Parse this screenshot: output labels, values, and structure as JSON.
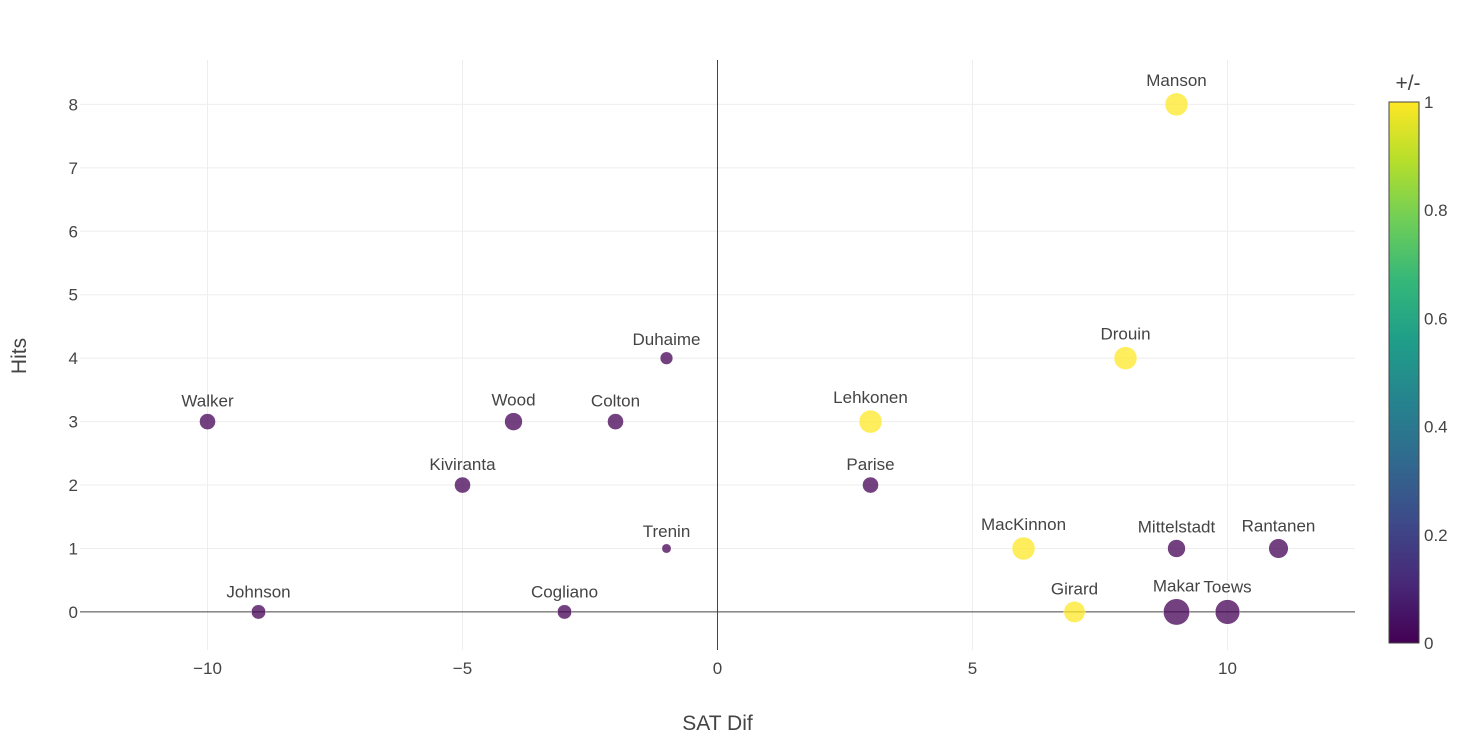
{
  "chart_data": {
    "type": "scatter",
    "title": "",
    "xlabel": "SAT Dif",
    "ylabel": "Hits",
    "xlim": [
      -12.5,
      12.5
    ],
    "ylim": [
      -0.6,
      8.7
    ],
    "x_ticks": [
      -10,
      -5,
      0,
      5,
      10
    ],
    "x_tick_labels": [
      "−10",
      "−5",
      "0",
      "5",
      "10"
    ],
    "y_ticks": [
      0,
      1,
      2,
      3,
      4,
      5,
      6,
      7,
      8
    ],
    "y_tick_labels": [
      "0",
      "1",
      "2",
      "3",
      "4",
      "5",
      "6",
      "7",
      "8"
    ],
    "grid": true,
    "color_by": "+/-",
    "colorbar": {
      "title": "+/-",
      "range": [
        0,
        1
      ],
      "ticks": [
        0,
        0.2,
        0.4,
        0.6,
        0.8,
        1
      ],
      "tick_labels": [
        "0",
        "0.2",
        "0.4",
        "0.6",
        "0.8",
        "1"
      ],
      "colorscale": "viridis"
    },
    "points": [
      {
        "name": "Manson",
        "x": 9,
        "y": 8,
        "color_value": 1,
        "size_value": 5
      },
      {
        "name": "Drouin",
        "x": 8,
        "y": 4,
        "color_value": 1,
        "size_value": 5
      },
      {
        "name": "Duhaime",
        "x": -1,
        "y": 4,
        "color_value": 0,
        "size_value": 2
      },
      {
        "name": "Walker",
        "x": -10,
        "y": 3,
        "color_value": 0,
        "size_value": 3
      },
      {
        "name": "Wood",
        "x": -4,
        "y": 3,
        "color_value": 0,
        "size_value": 3.5
      },
      {
        "name": "Colton",
        "x": -2,
        "y": 3,
        "color_value": 0,
        "size_value": 3
      },
      {
        "name": "Lehkonen",
        "x": 3,
        "y": 3,
        "color_value": 1,
        "size_value": 5
      },
      {
        "name": "Kiviranta",
        "x": -5,
        "y": 2,
        "color_value": 0,
        "size_value": 3
      },
      {
        "name": "Parise",
        "x": 3,
        "y": 2,
        "color_value": 0,
        "size_value": 3
      },
      {
        "name": "Trenin",
        "x": -1,
        "y": 1,
        "color_value": 0,
        "size_value": 1
      },
      {
        "name": "MacKinnon",
        "x": 6,
        "y": 1,
        "color_value": 1,
        "size_value": 5
      },
      {
        "name": "Mittelstadt",
        "x": 9,
        "y": 1,
        "color_value": 0,
        "size_value": 3.5
      },
      {
        "name": "Rantanen",
        "x": 11,
        "y": 1,
        "color_value": 0,
        "size_value": 4
      },
      {
        "name": "Johnson",
        "x": -9,
        "y": 0,
        "color_value": 0,
        "size_value": 2.5
      },
      {
        "name": "Cogliano",
        "x": -3,
        "y": 0,
        "color_value": 0,
        "size_value": 2.5
      },
      {
        "name": "Girard",
        "x": 7,
        "y": 0,
        "color_value": 1,
        "size_value": 4.5
      },
      {
        "name": "Makar",
        "x": 9,
        "y": 0,
        "color_value": 0,
        "size_value": 6
      },
      {
        "name": "Toews",
        "x": 10,
        "y": 0,
        "color_value": 0,
        "size_value": 5.5
      }
    ]
  }
}
